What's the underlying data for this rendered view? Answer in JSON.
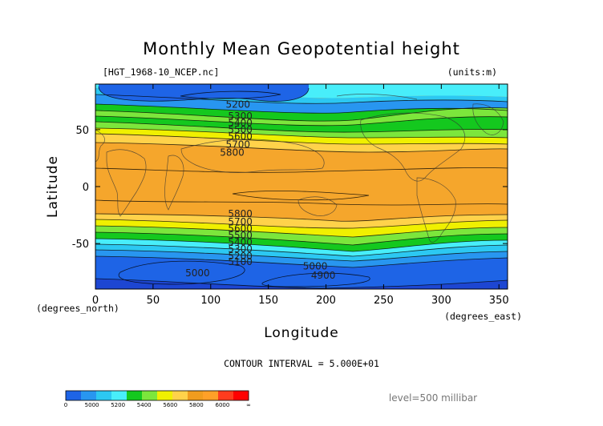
{
  "chart_data": {
    "type": "heatmap",
    "title": "Monthly Mean Geopotential height",
    "file_label": "[HGT_1968-10_NCEP.nc]",
    "units": "(units:m)",
    "xlabel": "Longitude",
    "ylabel": "Latitude",
    "x_unit_label": "(degrees_east)",
    "y_unit_label": "(degrees_north)",
    "xlim": [
      0,
      357.5
    ],
    "ylim": [
      -90,
      90
    ],
    "x_ticks": [
      0,
      50,
      100,
      150,
      200,
      250,
      300,
      350
    ],
    "y_ticks": [
      50,
      0,
      -50
    ],
    "contour_interval": "CONTOUR INTERVAL = 5.000E+01",
    "level": "level=500 millibar",
    "contour_labels": [
      {
        "text": "5200",
        "lon": 113,
        "lat": 72
      },
      {
        "text": "5300",
        "lon": 115,
        "lat": 62
      },
      {
        "text": "5400",
        "lon": 115,
        "lat": 56
      },
      {
        "text": "5500",
        "lon": 115,
        "lat": 50
      },
      {
        "text": "5600",
        "lon": 115,
        "lat": 44
      },
      {
        "text": "5700",
        "lon": 113,
        "lat": 37
      },
      {
        "text": "5800",
        "lon": 108,
        "lat": 30
      },
      {
        "text": "5800",
        "lon": 115,
        "lat": -24
      },
      {
        "text": "5700",
        "lon": 115,
        "lat": -31
      },
      {
        "text": "5600",
        "lon": 115,
        "lat": -37
      },
      {
        "text": "5500",
        "lon": 115,
        "lat": -43
      },
      {
        "text": "5400",
        "lon": 115,
        "lat": -49
      },
      {
        "text": "5300",
        "lon": 115,
        "lat": -55
      },
      {
        "text": "5200",
        "lon": 115,
        "lat": -61
      },
      {
        "text": "5100",
        "lon": 115,
        "lat": -66
      },
      {
        "text": "5000",
        "lon": 180,
        "lat": -70
      },
      {
        "text": "5000",
        "lon": 78,
        "lat": -76
      },
      {
        "text": "4900",
        "lon": 187,
        "lat": -78
      }
    ],
    "colorbar": {
      "tick_labels": [
        "0",
        "5000",
        "5200",
        "5400",
        "5600",
        "5800",
        "6000",
        "∞"
      ],
      "colors": [
        "#1e64e6",
        "#2896f0",
        "#2cc8f2",
        "#48eefa",
        "#14c81e",
        "#7ce63c",
        "#f0f000",
        "#ffd24a",
        "#f09c1e",
        "#ffa028",
        "#ff3c1e",
        "#ff0000"
      ]
    }
  }
}
